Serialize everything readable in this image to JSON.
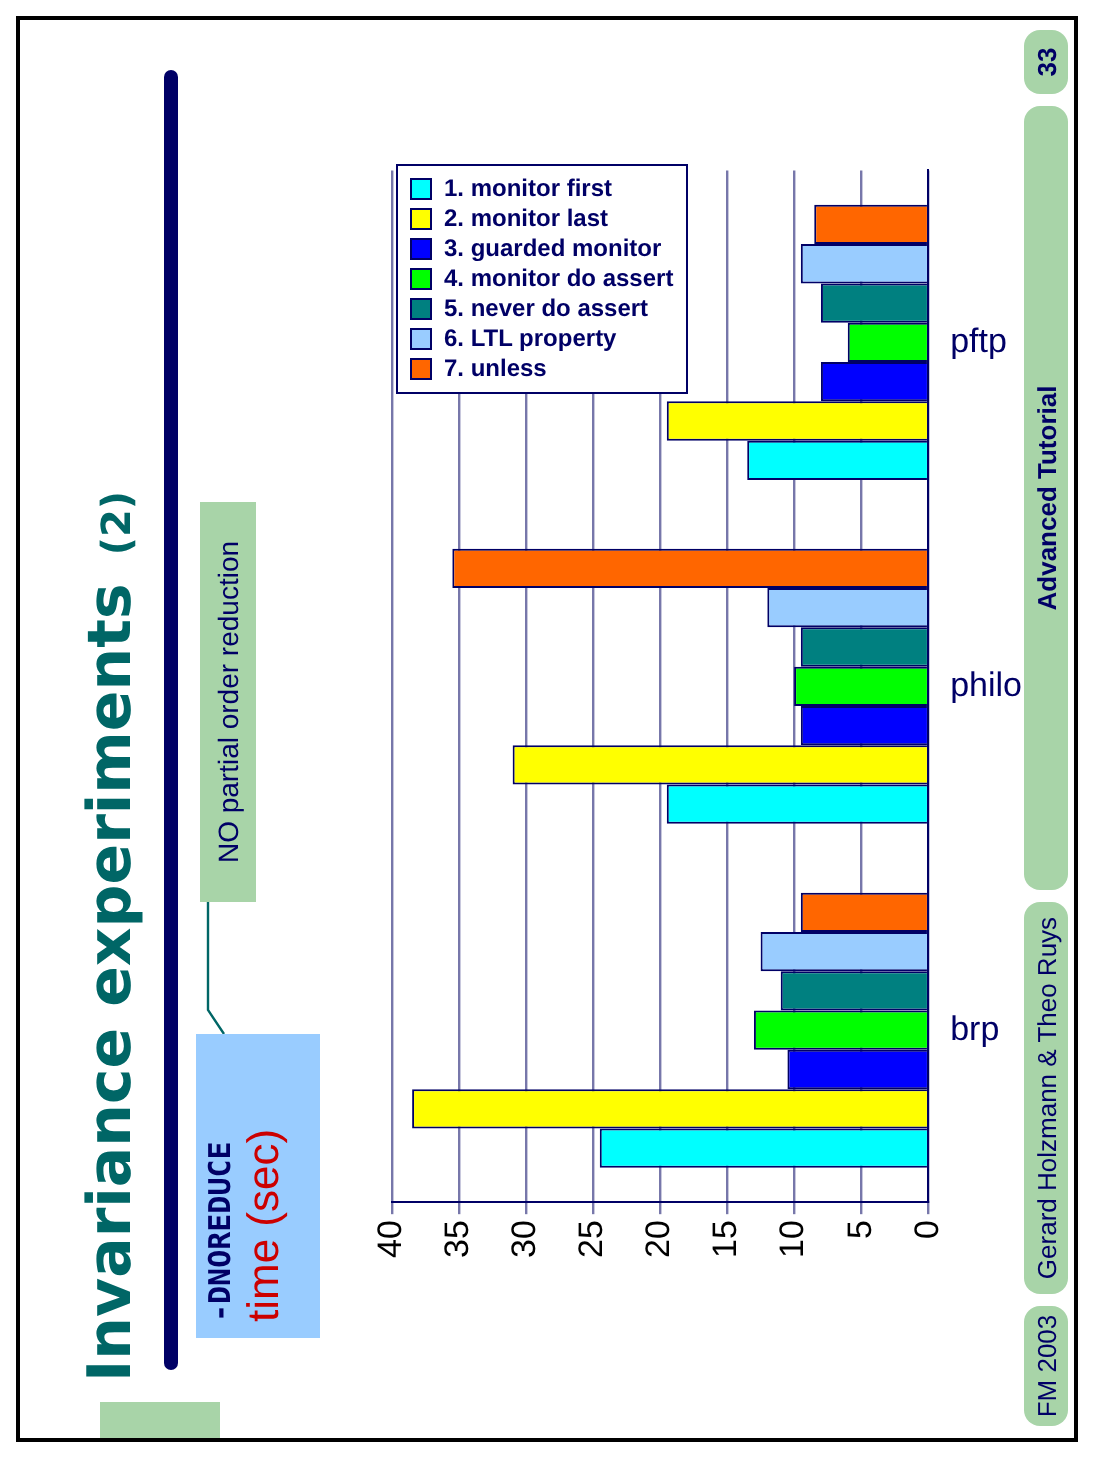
{
  "chart_data": {
    "type": "bar",
    "orientation": "horizontal",
    "title": "Invariance experiments",
    "subtitle": "(2)",
    "ylabel": "time (sec)",
    "annotations": [
      "-DNOREDUCE",
      "NO partial order reduction",
      "FM 2003",
      "Gerard Holzmann & Theo Ruys",
      "Advanced Tutorial",
      "33"
    ],
    "categories": [
      "pftp",
      "philo",
      "brp"
    ],
    "series": [
      {
        "name": "1. monitor first",
        "color": "#00ffff",
        "values": [
          13.5,
          19.5,
          24.5
        ]
      },
      {
        "name": "2. monitor last",
        "color": "#ffff00",
        "values": [
          19.5,
          31,
          38.5
        ]
      },
      {
        "name": "3. guarded monitor",
        "color": "#0000ff",
        "values": [
          8,
          9.5,
          10.5
        ]
      },
      {
        "name": "4. monitor do assert",
        "color": "#00ff00",
        "values": [
          6,
          10,
          13
        ]
      },
      {
        "name": "5. never do assert",
        "color": "#008080",
        "values": [
          8,
          9.5,
          11
        ]
      },
      {
        "name": "6. LTL property",
        "color": "#99ccff",
        "values": [
          9.5,
          12,
          12.5
        ]
      },
      {
        "name": "7. unless",
        "color": "#ff6600",
        "values": [
          8.5,
          35.5,
          9.5
        ]
      }
    ],
    "xlim": [
      40,
      0
    ],
    "xticks": [
      40,
      35,
      30,
      25,
      20,
      15,
      10,
      5,
      0
    ],
    "grid": "x",
    "legend": "top left"
  }
}
